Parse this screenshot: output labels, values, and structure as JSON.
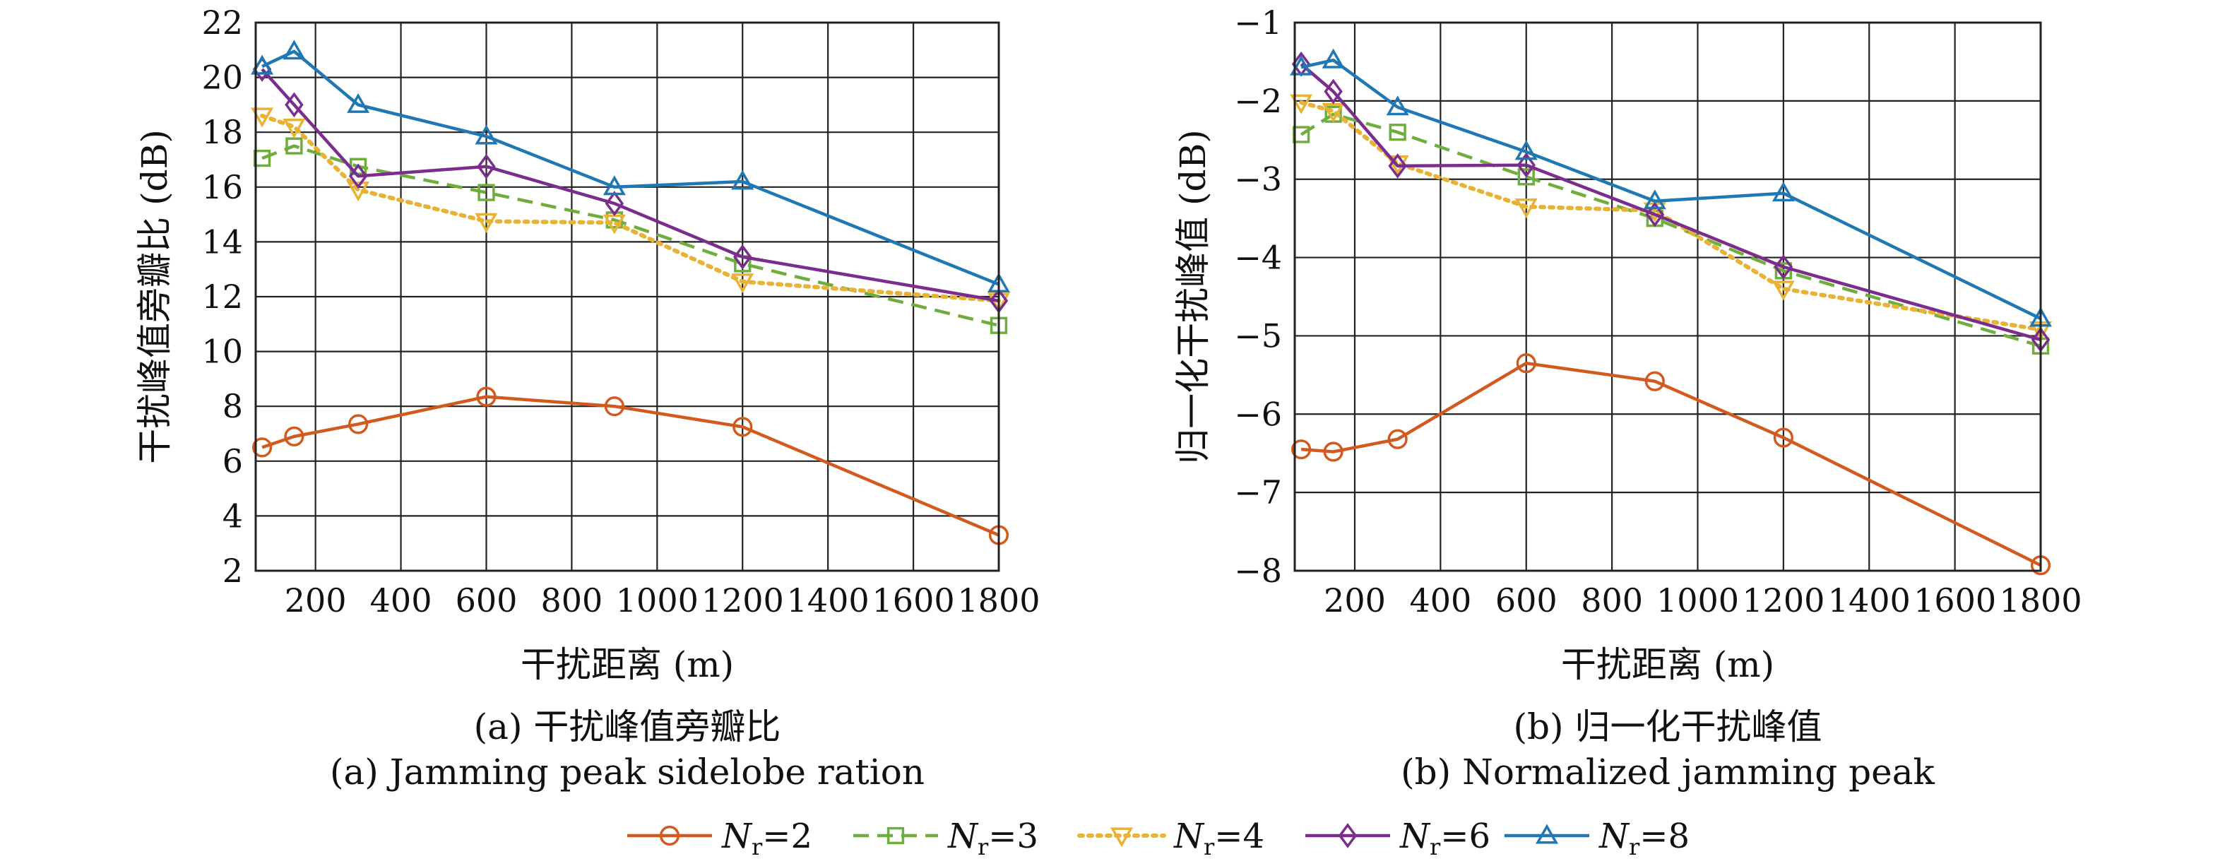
{
  "chart_data": [
    {
      "type": "line",
      "xlabel": "干扰距离 (m)",
      "ylabel": "干扰峰值旁瓣比 (dB)",
      "caption_cn": "(a) 干扰峰值旁瓣比",
      "caption_en": "(a) Jamming peak sidelobe ration",
      "xlim": [
        60,
        1800
      ],
      "ylim": [
        2,
        22
      ],
      "xticks": [
        200,
        400,
        600,
        800,
        1000,
        1200,
        1400,
        1600,
        1800
      ],
      "yticks": [
        2,
        4,
        6,
        8,
        10,
        12,
        14,
        16,
        18,
        20,
        22
      ],
      "grid": true,
      "x": [
        75,
        150,
        300,
        600,
        900,
        1200,
        1800
      ],
      "series": [
        {
          "key": "nr2",
          "values": [
            6.5,
            6.9,
            7.35,
            8.35,
            8.0,
            7.25,
            3.3
          ]
        },
        {
          "key": "nr3",
          "values": [
            17.05,
            17.5,
            16.75,
            15.8,
            14.8,
            13.2,
            10.95
          ]
        },
        {
          "key": "nr4",
          "values": [
            18.6,
            18.2,
            15.9,
            14.75,
            14.7,
            12.55,
            11.85
          ]
        },
        {
          "key": "nr6",
          "values": [
            20.3,
            19.0,
            16.4,
            16.75,
            15.4,
            13.45,
            11.85
          ]
        },
        {
          "key": "nr8",
          "values": [
            20.4,
            20.95,
            19.0,
            17.85,
            16.0,
            16.2,
            12.45
          ]
        }
      ]
    },
    {
      "type": "line",
      "xlabel": "干扰距离 (m)",
      "ylabel": "归一化干扰峰值 (dB)",
      "caption_cn": "(b) 归一化干扰峰值",
      "caption_en": "(b) Normalized jamming peak",
      "xlim": [
        60,
        1800
      ],
      "ylim": [
        -8,
        -1
      ],
      "xticks": [
        200,
        400,
        600,
        800,
        1000,
        1200,
        1400,
        1600,
        1800
      ],
      "yticks": [
        -8,
        -7,
        -6,
        -5,
        -4,
        -3,
        -2,
        -1
      ],
      "grid": true,
      "x": [
        75,
        150,
        300,
        600,
        900,
        1200,
        1800
      ],
      "series": [
        {
          "key": "nr2",
          "values": [
            -6.45,
            -6.48,
            -6.32,
            -5.35,
            -5.58,
            -6.3,
            -7.93
          ]
        },
        {
          "key": "nr3",
          "values": [
            -2.43,
            -2.17,
            -2.4,
            -2.97,
            -3.5,
            -4.17,
            -5.13
          ]
        },
        {
          "key": "nr4",
          "values": [
            -2.02,
            -2.13,
            -2.8,
            -3.35,
            -3.4,
            -4.4,
            -4.92
          ]
        },
        {
          "key": "nr6",
          "values": [
            -1.53,
            -1.88,
            -2.83,
            -2.82,
            -3.45,
            -4.12,
            -5.05
          ]
        },
        {
          "key": "nr8",
          "values": [
            -1.57,
            -1.48,
            -2.08,
            -2.65,
            -3.28,
            -3.18,
            -4.78
          ]
        }
      ]
    }
  ],
  "legend": {
    "placement": "bottom",
    "items": [
      {
        "key": "nr2",
        "symbol": "N",
        "sub": "r",
        "value": "=2",
        "color": "#d35a1f",
        "marker": "circle",
        "dash": "solid"
      },
      {
        "key": "nr3",
        "symbol": "N",
        "sub": "r",
        "value": "=3",
        "color": "#6fae3c",
        "marker": "square",
        "dash": "dashed"
      },
      {
        "key": "nr4",
        "symbol": "N",
        "sub": "r",
        "value": "=4",
        "color": "#e8b234",
        "marker": "triangle-down",
        "dash": "dotted"
      },
      {
        "key": "nr6",
        "symbol": "N",
        "sub": "r",
        "value": "=6",
        "color": "#7b2d8e",
        "marker": "diamond",
        "dash": "solid"
      },
      {
        "key": "nr8",
        "symbol": "N",
        "sub": "r",
        "value": "=8",
        "color": "#1f77b4",
        "marker": "triangle-up",
        "dash": "solid"
      }
    ]
  }
}
